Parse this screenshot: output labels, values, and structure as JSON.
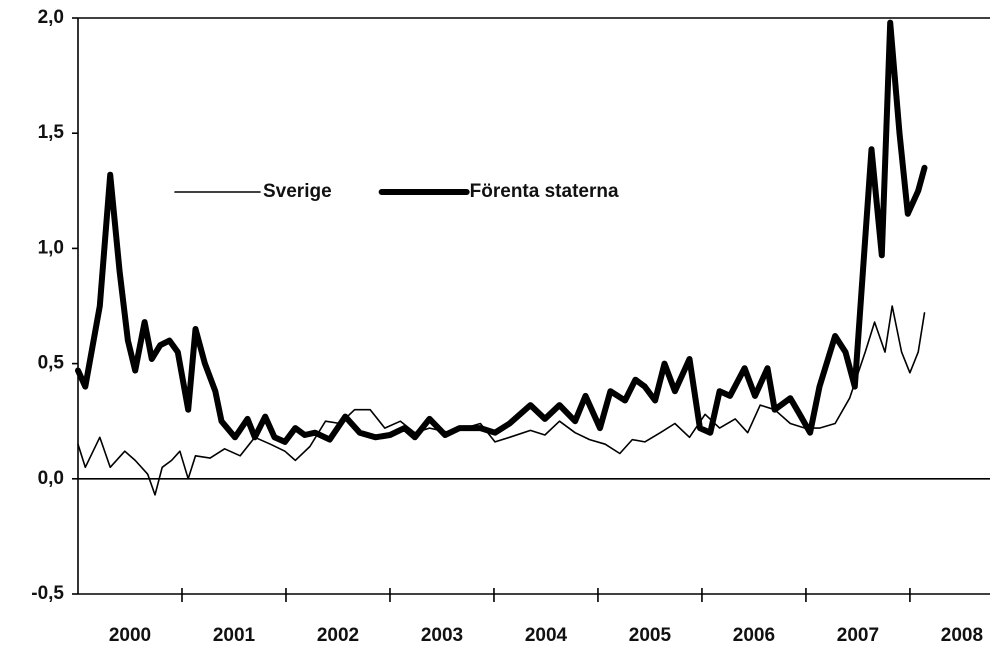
{
  "chart_data": {
    "type": "line",
    "xlim": [
      2000,
      2008.77
    ],
    "ylim": [
      -0.5,
      2.0
    ],
    "yticks": [
      {
        "value": -0.5,
        "label": "-0,5"
      },
      {
        "value": 0,
        "label": "0,0"
      },
      {
        "value": 0.5,
        "label": "0,5"
      },
      {
        "value": 1.0,
        "label": "1,0"
      },
      {
        "value": 1.5,
        "label": "1,5"
      },
      {
        "value": 2.0,
        "label": "2,0"
      }
    ],
    "xticks": [
      {
        "value": 2000.5,
        "label": "2000"
      },
      {
        "value": 2001.5,
        "label": "2001"
      },
      {
        "value": 2002.5,
        "label": "2002"
      },
      {
        "value": 2003.5,
        "label": "2003"
      },
      {
        "value": 2004.5,
        "label": "2004"
      },
      {
        "value": 2005.5,
        "label": "2005"
      },
      {
        "value": 2006.5,
        "label": "2006"
      },
      {
        "value": 2007.5,
        "label": "2007"
      },
      {
        "value": 2008.5,
        "label": "2008"
      }
    ],
    "xtick_marks": [
      2001,
      2002,
      2003,
      2004,
      2005,
      2006,
      2007,
      2008
    ],
    "legend": "upper left",
    "series": [
      {
        "name": "Sverige",
        "color": "#000000",
        "width": 1.6,
        "x": [
          2000.0,
          2000.07,
          2000.21,
          2000.31,
          2000.45,
          2000.55,
          2000.67,
          2000.74,
          2000.81,
          2000.9,
          2000.98,
          2001.06,
          2001.13,
          2001.27,
          2001.41,
          2001.56,
          2001.7,
          2001.85,
          2001.99,
          2002.09,
          2002.23,
          2002.38,
          2002.52,
          2002.66,
          2002.81,
          2002.95,
          2003.1,
          2003.24,
          2003.38,
          2003.58,
          2003.72,
          2003.87,
          2004.01,
          2004.15,
          2004.35,
          2004.49,
          2004.63,
          2004.78,
          2004.92,
          2005.07,
          2005.21,
          2005.33,
          2005.45,
          2005.6,
          2005.74,
          2005.88,
          2006.03,
          2006.17,
          2006.32,
          2006.44,
          2006.56,
          2006.7,
          2006.85,
          2006.99,
          2007.13,
          2007.28,
          2007.42,
          2007.57,
          2007.66,
          2007.76,
          2007.83,
          2007.92,
          2008.0,
          2008.08,
          2008.14
        ],
        "values": [
          0.15,
          0.05,
          0.18,
          0.05,
          0.12,
          0.08,
          0.02,
          -0.07,
          0.05,
          0.08,
          0.12,
          0.0,
          0.1,
          0.09,
          0.13,
          0.1,
          0.18,
          0.15,
          0.12,
          0.08,
          0.14,
          0.25,
          0.24,
          0.3,
          0.3,
          0.22,
          0.25,
          0.2,
          0.22,
          0.2,
          0.22,
          0.24,
          0.16,
          0.18,
          0.21,
          0.19,
          0.25,
          0.2,
          0.17,
          0.15,
          0.11,
          0.17,
          0.16,
          0.2,
          0.24,
          0.18,
          0.28,
          0.22,
          0.26,
          0.2,
          0.32,
          0.3,
          0.24,
          0.22,
          0.22,
          0.24,
          0.35,
          0.55,
          0.68,
          0.55,
          0.75,
          0.55,
          0.46,
          0.55,
          0.72
        ]
      },
      {
        "name": "Förenta staterna",
        "color": "#000000",
        "width": 6,
        "x": [
          2000.0,
          2000.07,
          2000.21,
          2000.31,
          2000.4,
          2000.48,
          2000.55,
          2000.64,
          2000.71,
          2000.79,
          2000.88,
          2000.96,
          2001.06,
          2001.13,
          2001.22,
          2001.32,
          2001.38,
          2001.51,
          2001.63,
          2001.7,
          2001.8,
          2001.89,
          2001.99,
          2002.09,
          2002.18,
          2002.28,
          2002.42,
          2002.57,
          2002.71,
          2002.86,
          2003.0,
          2003.14,
          2003.24,
          2003.38,
          2003.53,
          2003.67,
          2003.87,
          2004.01,
          2004.15,
          2004.35,
          2004.49,
          2004.63,
          2004.78,
          2004.88,
          2005.02,
          2005.12,
          2005.26,
          2005.36,
          2005.45,
          2005.55,
          2005.64,
          2005.74,
          2005.88,
          2005.98,
          2006.08,
          2006.17,
          2006.27,
          2006.41,
          2006.51,
          2006.63,
          2006.7,
          2006.85,
          2006.94,
          2007.04,
          2007.13,
          2007.28,
          2007.38,
          2007.47,
          2007.63,
          2007.73,
          2007.81,
          2007.9,
          2007.98,
          2008.08,
          2008.14
        ],
        "values": [
          0.47,
          0.4,
          0.75,
          1.32,
          0.9,
          0.6,
          0.47,
          0.68,
          0.52,
          0.58,
          0.6,
          0.55,
          0.3,
          0.65,
          0.5,
          0.38,
          0.25,
          0.18,
          0.26,
          0.18,
          0.27,
          0.18,
          0.16,
          0.22,
          0.19,
          0.2,
          0.17,
          0.27,
          0.2,
          0.18,
          0.19,
          0.22,
          0.18,
          0.26,
          0.19,
          0.22,
          0.22,
          0.2,
          0.24,
          0.32,
          0.26,
          0.32,
          0.25,
          0.36,
          0.22,
          0.38,
          0.34,
          0.43,
          0.4,
          0.34,
          0.5,
          0.38,
          0.52,
          0.22,
          0.2,
          0.38,
          0.36,
          0.48,
          0.36,
          0.48,
          0.3,
          0.35,
          0.28,
          0.2,
          0.4,
          0.62,
          0.55,
          0.4,
          1.43,
          0.97,
          1.98,
          1.5,
          1.15,
          1.25,
          1.35
        ]
      }
    ]
  }
}
